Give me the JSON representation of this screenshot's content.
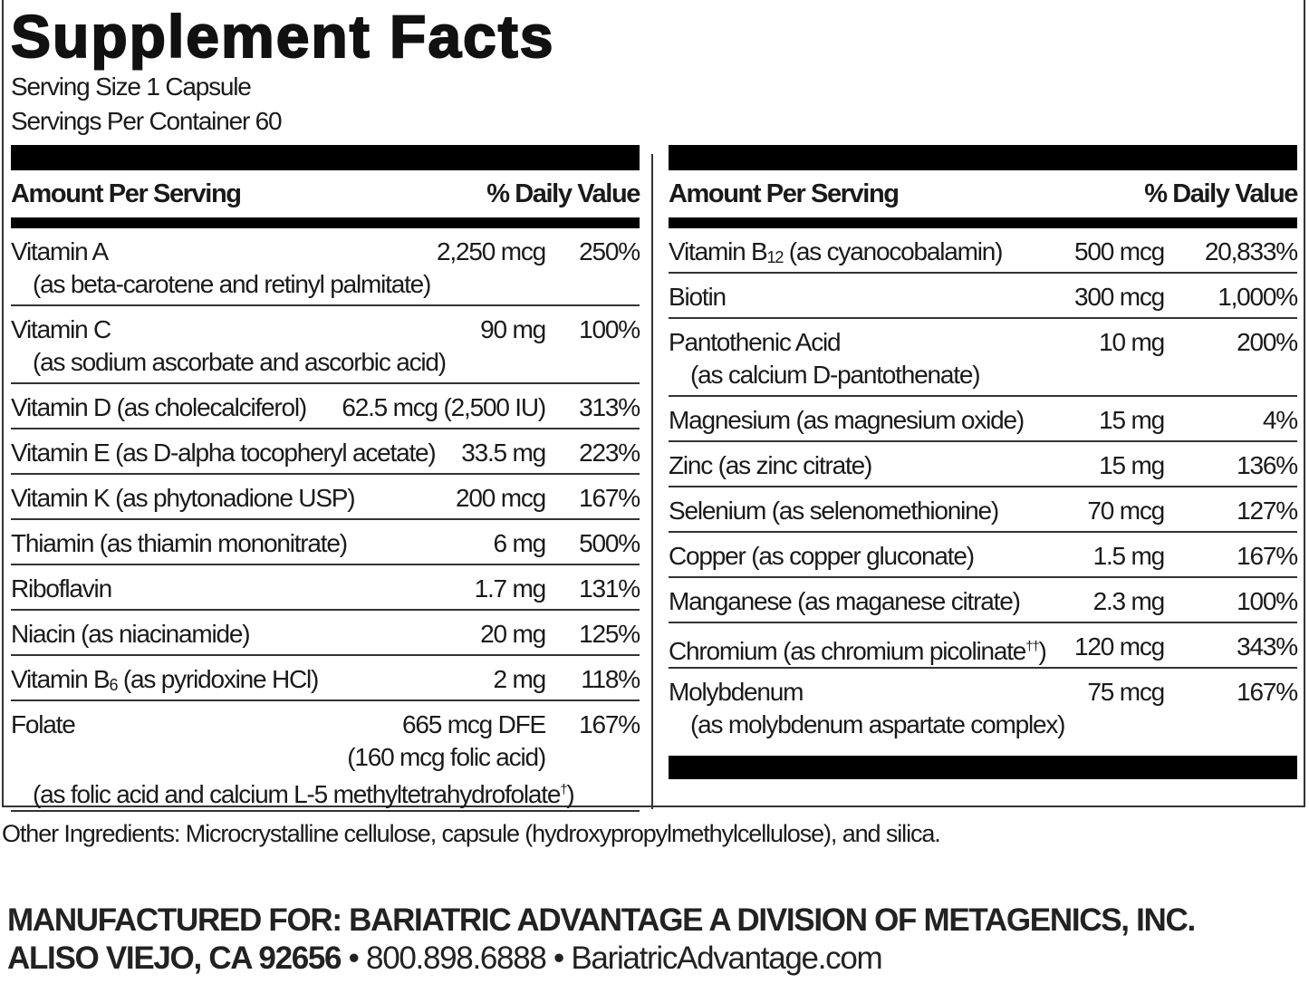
{
  "title": "Supplement Facts",
  "serving_size": "Serving Size 1 Capsule",
  "servings_per_container": "Servings Per Container 60",
  "header": {
    "amount": "Amount Per Serving",
    "dv": "% Daily Value"
  },
  "left_rows": [
    {
      "name": "Vitamin A",
      "amount": "2,250 mcg",
      "dv": "250%",
      "subs": [
        "(as beta-carotene and retinyl palmitate)"
      ]
    },
    {
      "name": "Vitamin C",
      "amount": "90 mg",
      "dv": "100%",
      "subs": [
        "(as sodium ascorbate and ascorbic acid)"
      ]
    },
    {
      "name": "Vitamin D (as cholecalciferol)",
      "amount": "62.5 mcg (2,500 IU)",
      "dv": "313%"
    },
    {
      "name": "Vitamin E (as D-alpha tocopheryl acetate)",
      "amount": "33.5 mg",
      "dv": "223%"
    },
    {
      "name": "Vitamin K (as phytonadione USP)",
      "amount": "200 mcg",
      "dv": "167%"
    },
    {
      "name": "Thiamin (as thiamin mononitrate)",
      "amount": "6 mg",
      "dv": "500%"
    },
    {
      "name": "Riboflavin",
      "amount": "1.7 mg",
      "dv": "131%"
    },
    {
      "name": "Niacin (as niacinamide)",
      "amount": "20 mg",
      "dv": "125%"
    },
    {
      "name": "Vitamin B",
      "name_sub": "6",
      "name_rest": " (as pyridoxine HCl)",
      "amount": "2 mg",
      "dv": "118%"
    },
    {
      "name": "Folate",
      "amount": "665 mcg DFE",
      "dv": "167%",
      "amount_sub": "(160 mcg folic acid)",
      "subs": [
        "(as folic acid and calcium L-5 methyltetrahydrofolate"
      ],
      "subs_sup": "†",
      "subs_end": ")"
    }
  ],
  "right_rows": [
    {
      "name": "Vitamin B",
      "name_sub": "12",
      "name_rest": " (as cyanocobalamin)",
      "amount": "500 mcg",
      "dv": "20,833%"
    },
    {
      "name": "Biotin",
      "amount": "300 mcg",
      "dv": "1,000%"
    },
    {
      "name": "Pantothenic Acid",
      "amount": "10 mg",
      "dv": "200%",
      "subs": [
        "(as calcium D-pantothenate)"
      ]
    },
    {
      "name": "Magnesium (as magnesium oxide)",
      "amount": "15 mg",
      "dv": "4%"
    },
    {
      "name": "Zinc (as zinc citrate)",
      "amount": "15 mg",
      "dv": "136%"
    },
    {
      "name": "Selenium (as selenomethionine)",
      "amount": "70 mcg",
      "dv": "127%"
    },
    {
      "name": "Copper (as copper gluconate)",
      "amount": "1.5 mg",
      "dv": "167%"
    },
    {
      "name": "Manganese (as maganese citrate)",
      "amount": "2.3 mg",
      "dv": "100%"
    },
    {
      "name": "Chromium (as chromium picolinate",
      "name_sup": "††",
      "name_rest": ")",
      "amount": "120 mcg",
      "dv": "343%"
    },
    {
      "name": "Molybdenum",
      "amount": "75 mcg",
      "dv": "167%",
      "subs": [
        "(as molybdenum aspartate complex)"
      ]
    }
  ],
  "other_ingredients": "Other Ingredients: Microcrystalline cellulose, capsule (hydroxypropylmethylcellulose), and silica.",
  "manufacturer_line1": "MANUFACTURED FOR: BARIATRIC ADVANTAGE A DIVISION OF METAGENICS, INC.",
  "manufacturer_city": "ALISO VIEJO, CA 92656",
  "separator": " • ",
  "phone": "800.898.6888",
  "website": "BariatricAdvantage.com"
}
